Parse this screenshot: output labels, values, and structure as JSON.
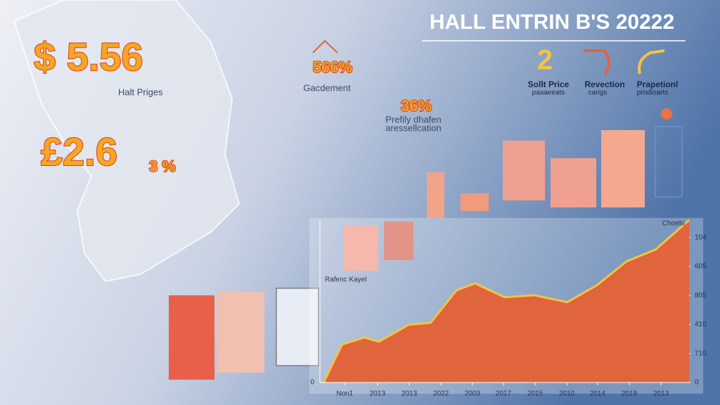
{
  "header": {
    "title": "HALL ENTRIN B'S 20222"
  },
  "stats": [
    {
      "value": "$ 5.56",
      "label": "Halt Priges"
    },
    {
      "value": "£2.6",
      "suffix": "3 %"
    }
  ],
  "callouts": [
    {
      "value": "566%",
      "label": "Gacdement"
    },
    {
      "value": "36%",
      "label": "Prefily dhafen",
      "label2": "aressellcation"
    }
  ],
  "icons": [
    {
      "symbol": "2",
      "label": "Sollt Price",
      "sub": "paaaeeats"
    },
    {
      "label": "Revection",
      "sub": "carigs"
    },
    {
      "label": "Prapetionl",
      "sub": "prodioarts"
    }
  ],
  "chart_data": {
    "type": "area",
    "annotation": "Rafenc Kayel",
    "corner_label": "Choetu",
    "left_zero": "0",
    "x": [
      1,
      6,
      12,
      16,
      24,
      30,
      37,
      42,
      50,
      58,
      67,
      75,
      83,
      91,
      100
    ],
    "values": [
      0,
      1.31,
      1.55,
      1.41,
      1.99,
      2.06,
      3.18,
      3.42,
      2.94,
      3.01,
      2.77,
      3.35,
      4.17,
      4.59,
      5.6
    ],
    "color": "#e0643c",
    "line_color": "#f2c443",
    "xlim": [
      0,
      100
    ],
    "ylim": [
      0,
      5.6
    ],
    "xticks": [
      {
        "value": 6.7,
        "label": "Non1"
      },
      {
        "value": 15.6,
        "label": "2013"
      },
      {
        "value": 24.2,
        "label": "2013"
      },
      {
        "value": 32.8,
        "label": "2022"
      },
      {
        "value": 41.3,
        "label": "2003"
      },
      {
        "value": 49.7,
        "label": "2017"
      },
      {
        "value": 58.3,
        "label": "2015"
      },
      {
        "value": 66.9,
        "label": "2010"
      },
      {
        "value": 75.2,
        "label": "2014"
      },
      {
        "value": 83.8,
        "label": "2019"
      },
      {
        "value": 92.4,
        "label": "2013"
      }
    ],
    "yticks": [
      {
        "value": 0,
        "label": "0"
      },
      {
        "value": 1,
        "label": "710"
      },
      {
        "value": 2,
        "label": "410"
      },
      {
        "value": 3,
        "label": "805"
      },
      {
        "value": 4,
        "label": "605"
      },
      {
        "value": 5,
        "label": "104"
      }
    ]
  }
}
